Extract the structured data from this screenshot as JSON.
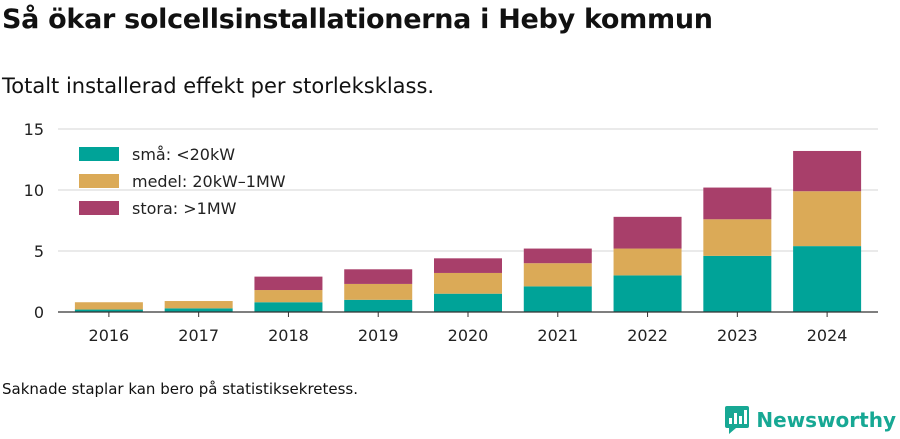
{
  "header": {
    "title": "Så ökar solcellsinstallationerna i Heby kommun",
    "subtitle": "Totalt installerad effekt per storleksklass."
  },
  "footer": {
    "note": "Saknade staplar kan bero på statistiksekretess.",
    "brand": "Newsworthy",
    "brand_icon": "newsworthy-logo-icon",
    "brand_color": "#17a894"
  },
  "chart_data": {
    "type": "bar",
    "stacked": true,
    "categories": [
      "2016",
      "2017",
      "2018",
      "2019",
      "2020",
      "2021",
      "2022",
      "2023",
      "2024"
    ],
    "series": [
      {
        "name": "små: <20kW",
        "color": "#00a398",
        "values": [
          0.2,
          0.3,
          0.8,
          1.0,
          1.5,
          2.1,
          3.0,
          4.6,
          5.4
        ]
      },
      {
        "name": "medel: 20kW–1MW",
        "color": "#dbaa57",
        "values": [
          0.6,
          0.6,
          1.0,
          1.3,
          1.7,
          1.9,
          2.2,
          3.0,
          4.5
        ]
      },
      {
        "name": "stora: >1MW",
        "color": "#a83f6a",
        "values": [
          0.0,
          0.0,
          1.1,
          1.2,
          1.2,
          1.2,
          2.6,
          2.6,
          3.3
        ]
      }
    ],
    "yticks": [
      0,
      5,
      10,
      15
    ],
    "ylim": [
      0,
      15
    ],
    "xlabel": "",
    "ylabel": "",
    "grid": true,
    "legend_position": "top-left"
  }
}
